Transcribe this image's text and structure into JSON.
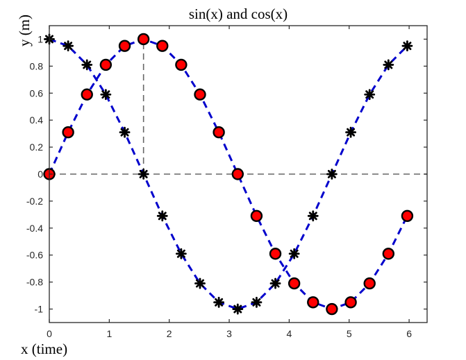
{
  "chart_data": {
    "type": "line",
    "title": "sin(x) and cos(x)",
    "xlabel": "x (time)",
    "ylabel": "y (m)",
    "xlim": [
      0,
      6.3
    ],
    "ylim": [
      -1.1,
      1.1
    ],
    "xticks": [
      "0",
      "1",
      "2",
      "3",
      "4",
      "5",
      "6"
    ],
    "yticks": [
      "-1",
      "-0.8",
      "-0.6",
      "-0.4",
      "-0.2",
      "0",
      "0.2",
      "0.4",
      "0.6",
      "0.8",
      "1"
    ],
    "x": [
      0,
      0.314,
      0.628,
      0.942,
      1.257,
      1.571,
      1.885,
      2.199,
      2.513,
      2.827,
      3.142,
      3.456,
      3.77,
      4.084,
      4.398,
      4.712,
      5.027,
      5.341,
      5.655,
      5.969
    ],
    "series": [
      {
        "name": "sin(x)",
        "values": [
          0.0,
          0.31,
          0.59,
          0.81,
          0.95,
          1.0,
          0.95,
          0.81,
          0.59,
          0.31,
          0.0,
          -0.31,
          -0.59,
          -0.81,
          -0.95,
          -1.0,
          -0.95,
          -0.81,
          -0.59,
          -0.31
        ],
        "marker": "circle",
        "marker_color": "#ff0000",
        "line_color": "#0000cc",
        "line_style": "dashed"
      },
      {
        "name": "cos(x)",
        "values": [
          1.0,
          0.95,
          0.81,
          0.59,
          0.31,
          0.0,
          -0.31,
          -0.59,
          -0.81,
          -0.95,
          -1.0,
          -0.95,
          -0.81,
          -0.59,
          -0.31,
          0.0,
          0.31,
          0.59,
          0.81,
          0.95
        ],
        "marker": "asterisk",
        "marker_color": "#000000",
        "line_color": "#0000cc",
        "line_style": "dashed"
      }
    ],
    "reference_lines": [
      {
        "orientation": "horizontal",
        "value": 0,
        "color": "#666666",
        "style": "dashed"
      },
      {
        "orientation": "vertical",
        "value": 1.571,
        "from": 0,
        "to": 1,
        "color": "#666666",
        "style": "dashed"
      }
    ],
    "grid": false,
    "legend": "none"
  }
}
